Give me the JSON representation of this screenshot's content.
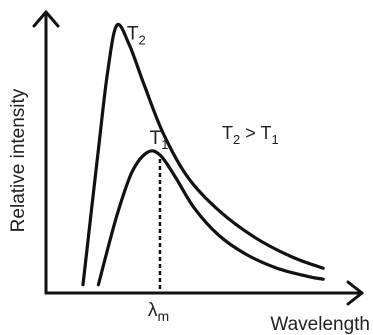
{
  "chart_data": {
    "type": "line",
    "title": "",
    "xlabel": "Wavelength",
    "ylabel": "Relative intensity",
    "x_tick_label": {
      "main": "λ",
      "sub": "m"
    },
    "annotation": {
      "a": "T",
      "a_sub": "2",
      "op": " > ",
      "b": "T",
      "b_sub": "1"
    },
    "xlim": [
      0,
      1
    ],
    "ylim": [
      0,
      1
    ],
    "grid": false,
    "colors": {
      "curve": "#111111",
      "axis": "#111111",
      "marker": "#111111"
    },
    "series": [
      {
        "name": "T2",
        "label_main": "T",
        "label_sub": "2",
        "x": [
          0.12,
          0.17,
          0.2,
          0.23,
          0.27,
          0.32,
          0.38,
          0.46,
          0.56,
          0.68,
          0.8,
          0.9
        ],
        "y": [
          0.03,
          0.52,
          0.8,
          0.97,
          0.9,
          0.75,
          0.58,
          0.42,
          0.3,
          0.2,
          0.13,
          0.09
        ]
      },
      {
        "name": "T1",
        "label_main": "T",
        "label_sub": "1",
        "x": [
          0.17,
          0.23,
          0.28,
          0.33,
          0.37,
          0.42,
          0.48,
          0.56,
          0.65,
          0.75,
          0.85,
          0.9
        ],
        "y": [
          0.03,
          0.28,
          0.44,
          0.51,
          0.5,
          0.42,
          0.31,
          0.21,
          0.14,
          0.09,
          0.06,
          0.05
        ]
      }
    ],
    "peak_marker": {
      "x": 0.37,
      "y": 0.5
    }
  }
}
